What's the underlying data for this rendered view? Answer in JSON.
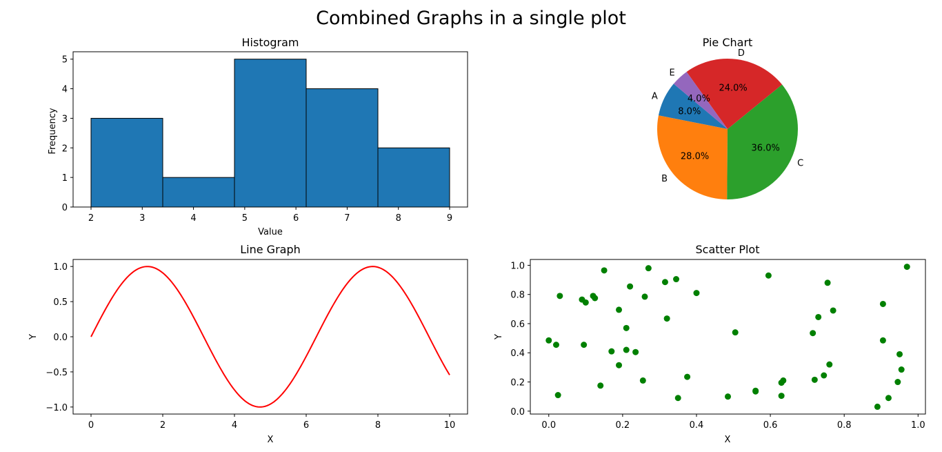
{
  "figure": {
    "suptitle": "Combined Graphs in a single plot"
  },
  "chart_data": [
    {
      "type": "bar",
      "subtype": "histogram",
      "title": "Histogram",
      "xlabel": "Value",
      "ylabel": "Frequency",
      "bin_edges": [
        2,
        3.4,
        4.8,
        6.2,
        7.6,
        9
      ],
      "values": [
        3,
        1,
        5,
        4,
        2
      ],
      "xlim": [
        1.65,
        9.35
      ],
      "ylim": [
        0,
        5.25
      ],
      "xticks": [
        2,
        3,
        4,
        5,
        6,
        7,
        8,
        9
      ],
      "yticks": [
        0,
        1,
        2,
        3,
        4,
        5
      ],
      "bar_color": "#1f77b4",
      "edge_color": "#000000"
    },
    {
      "type": "pie",
      "title": "Pie Chart",
      "slices": [
        {
          "label": "A",
          "value": 8.0,
          "pct_label": "8.0%",
          "color": "#1f77b4"
        },
        {
          "label": "B",
          "value": 28.0,
          "pct_label": "28.0%",
          "color": "#ff7f0e"
        },
        {
          "label": "C",
          "value": 36.0,
          "pct_label": "36.0%",
          "color": "#2ca02c"
        },
        {
          "label": "D",
          "value": 24.0,
          "pct_label": "24.0%",
          "color": "#d62728"
        },
        {
          "label": "E",
          "value": 4.0,
          "pct_label": "4.0%",
          "color": "#9467bd"
        }
      ],
      "start_angle": 140
    },
    {
      "type": "line",
      "title": "Line Graph",
      "xlabel": "X",
      "ylabel": "Y",
      "series": [
        {
          "function": "sin(x)",
          "x_range": [
            0,
            10
          ],
          "color": "#ff0000"
        }
      ],
      "xlim": [
        -0.5,
        10.5
      ],
      "ylim": [
        -1.1,
        1.1
      ],
      "xticks": [
        0,
        2,
        4,
        6,
        8,
        10
      ],
      "ytick_values": [
        -1.0,
        -0.5,
        0.0,
        0.5,
        1.0
      ],
      "ytick_labels": [
        "−1.0",
        "−0.5",
        "0.0",
        "0.5",
        "1.0"
      ]
    },
    {
      "type": "scatter",
      "title": "Scatter Plot",
      "xlabel": "X",
      "ylabel": "Y",
      "color": "#008000",
      "xlim": [
        -0.05,
        1.02
      ],
      "ylim": [
        -0.02,
        1.04
      ],
      "xticks": [
        0.0,
        0.2,
        0.4,
        0.6,
        0.8,
        1.0
      ],
      "xtick_labels": [
        "0.0",
        "0.2",
        "0.4",
        "0.6",
        "0.8",
        "1.0"
      ],
      "yticks": [
        0.0,
        0.2,
        0.4,
        0.6,
        0.8,
        1.0
      ],
      "ytick_labels": [
        "0.0",
        "0.2",
        "0.4",
        "0.6",
        "0.8",
        "1.0"
      ],
      "points": [
        [
          0.0,
          0.485
        ],
        [
          0.02,
          0.455
        ],
        [
          0.025,
          0.11
        ],
        [
          0.03,
          0.79
        ],
        [
          0.09,
          0.765
        ],
        [
          0.1,
          0.745
        ],
        [
          0.095,
          0.455
        ],
        [
          0.12,
          0.79
        ],
        [
          0.125,
          0.775
        ],
        [
          0.14,
          0.175
        ],
        [
          0.15,
          0.965
        ],
        [
          0.17,
          0.41
        ],
        [
          0.19,
          0.695
        ],
        [
          0.19,
          0.315
        ],
        [
          0.21,
          0.57
        ],
        [
          0.21,
          0.42
        ],
        [
          0.22,
          0.855
        ],
        [
          0.235,
          0.405
        ],
        [
          0.255,
          0.21
        ],
        [
          0.26,
          0.785
        ],
        [
          0.27,
          0.98
        ],
        [
          0.315,
          0.885
        ],
        [
          0.32,
          0.635
        ],
        [
          0.345,
          0.905
        ],
        [
          0.35,
          0.09
        ],
        [
          0.375,
          0.235
        ],
        [
          0.4,
          0.81
        ],
        [
          0.485,
          0.1
        ],
        [
          0.505,
          0.54
        ],
        [
          0.56,
          0.14
        ],
        [
          0.56,
          0.135
        ],
        [
          0.595,
          0.93
        ],
        [
          0.63,
          0.195
        ],
        [
          0.635,
          0.21
        ],
        [
          0.63,
          0.105
        ],
        [
          0.715,
          0.535
        ],
        [
          0.72,
          0.215
        ],
        [
          0.73,
          0.645
        ],
        [
          0.745,
          0.245
        ],
        [
          0.755,
          0.88
        ],
        [
          0.76,
          0.32
        ],
        [
          0.77,
          0.69
        ],
        [
          0.89,
          0.03
        ],
        [
          0.905,
          0.735
        ],
        [
          0.905,
          0.485
        ],
        [
          0.92,
          0.09
        ],
        [
          0.945,
          0.2
        ],
        [
          0.95,
          0.39
        ],
        [
          0.955,
          0.285
        ],
        [
          0.97,
          0.99
        ]
      ]
    }
  ]
}
